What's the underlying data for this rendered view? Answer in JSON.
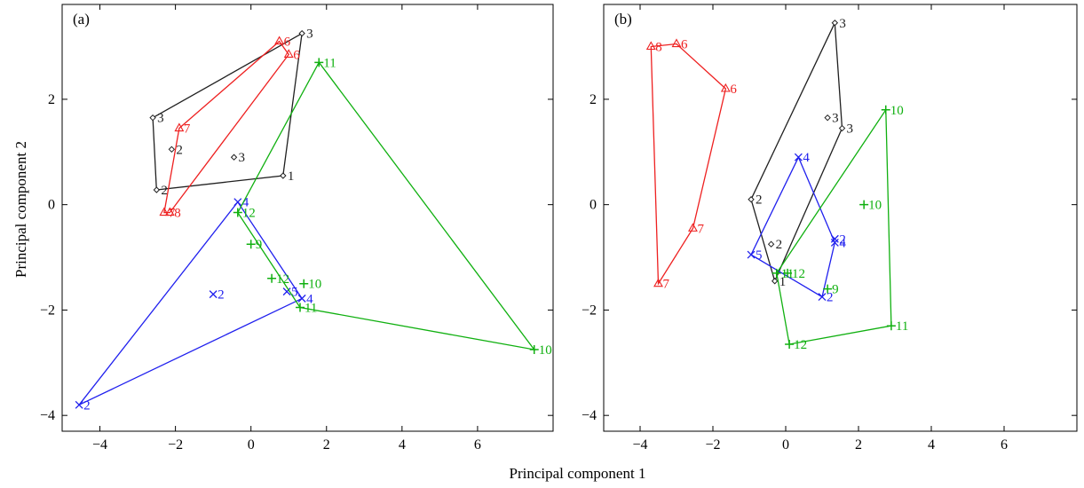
{
  "figure": {
    "xlabel": "Principal component 1",
    "ylabel": "Principal component 2"
  },
  "colors": {
    "grp1": "#202020",
    "grp2": "#ee2020",
    "grp3": "#2020ee",
    "grp4": "#10b010"
  },
  "chart_data": [
    {
      "type": "scatter",
      "panel_label": "(a)",
      "xlim": [
        -5,
        8
      ],
      "ylim": [
        -4.3,
        3.8
      ],
      "xticks": [
        -4,
        -2,
        0,
        2,
        4,
        6
      ],
      "yticks": [
        -4,
        -2,
        0,
        2
      ],
      "xticklabels": [
        "−4",
        "−2",
        "0",
        "2",
        "4",
        "6"
      ],
      "yticklabels": [
        "−4",
        "−2",
        "0",
        "2"
      ],
      "grid": false,
      "series": [
        {
          "marker": "diamond",
          "color": "#202020",
          "points": [
            {
              "x": 1.35,
              "y": 3.25,
              "label": "3"
            },
            {
              "x": -2.6,
              "y": 1.65,
              "label": "3"
            },
            {
              "x": -2.1,
              "y": 1.05,
              "label": "2"
            },
            {
              "x": -0.45,
              "y": 0.9,
              "label": "3"
            },
            {
              "x": -2.5,
              "y": 0.28,
              "label": "2"
            },
            {
              "x": 0.85,
              "y": 0.55,
              "label": "1"
            }
          ],
          "hull": [
            [
              1.35,
              3.25
            ],
            [
              -2.6,
              1.65
            ],
            [
              -2.5,
              0.28
            ],
            [
              0.85,
              0.55
            ]
          ]
        },
        {
          "marker": "triangle",
          "color": "#ee2020",
          "points": [
            {
              "x": 0.75,
              "y": 3.1,
              "label": "6"
            },
            {
              "x": 1.0,
              "y": 2.85,
              "label": "6"
            },
            {
              "x": -1.9,
              "y": 1.45,
              "label": "7"
            },
            {
              "x": -2.3,
              "y": -0.15,
              "label": "7"
            },
            {
              "x": -2.15,
              "y": -0.15,
              "label": "8"
            }
          ],
          "hull": [
            [
              0.75,
              3.1
            ],
            [
              1.0,
              2.85
            ],
            [
              -2.15,
              -0.15
            ],
            [
              -2.3,
              -0.15
            ],
            [
              -1.9,
              1.45
            ]
          ]
        },
        {
          "marker": "cross",
          "color": "#2020ee",
          "points": [
            {
              "x": -0.35,
              "y": 0.05,
              "label": "4"
            },
            {
              "x": -1.0,
              "y": -1.7,
              "label": "2"
            },
            {
              "x": 0.95,
              "y": -1.65,
              "label": "5"
            },
            {
              "x": 1.35,
              "y": -1.78,
              "label": "4"
            },
            {
              "x": -4.55,
              "y": -3.8,
              "label": "2"
            }
          ],
          "hull": [
            [
              -0.35,
              0.05
            ],
            [
              1.35,
              -1.78
            ],
            [
              -4.55,
              -3.8
            ]
          ]
        },
        {
          "marker": "plus",
          "color": "#10b010",
          "points": [
            {
              "x": 1.8,
              "y": 2.7,
              "label": "11"
            },
            {
              "x": -0.35,
              "y": -0.15,
              "label": "12"
            },
            {
              "x": 0.0,
              "y": -0.75,
              "label": "9"
            },
            {
              "x": 0.55,
              "y": -1.4,
              "label": "12"
            },
            {
              "x": 1.4,
              "y": -1.5,
              "label": "10"
            },
            {
              "x": 1.3,
              "y": -1.95,
              "label": "11"
            },
            {
              "x": 7.5,
              "y": -2.75,
              "label": "10"
            }
          ],
          "hull": [
            [
              1.8,
              2.7
            ],
            [
              7.5,
              -2.75
            ],
            [
              1.3,
              -1.95
            ],
            [
              -0.35,
              -0.15
            ]
          ]
        }
      ]
    },
    {
      "type": "scatter",
      "panel_label": "(b)",
      "xlim": [
        -5,
        8
      ],
      "ylim": [
        -4.3,
        3.8
      ],
      "xticks": [
        -4,
        -2,
        0,
        2,
        4,
        6
      ],
      "yticks": [
        -4,
        -2,
        0,
        2
      ],
      "xticklabels": [
        "−4",
        "−2",
        "0",
        "2",
        "4",
        "6"
      ],
      "yticklabels": [
        "−4",
        "−2",
        "0",
        "2"
      ],
      "grid": false,
      "series": [
        {
          "marker": "diamond",
          "color": "#202020",
          "points": [
            {
              "x": 1.35,
              "y": 3.45,
              "label": "3"
            },
            {
              "x": 1.15,
              "y": 1.65,
              "label": "3"
            },
            {
              "x": 1.55,
              "y": 1.45,
              "label": "3"
            },
            {
              "x": -0.95,
              "y": 0.1,
              "label": "2"
            },
            {
              "x": -0.4,
              "y": -0.75,
              "label": "2"
            },
            {
              "x": -0.3,
              "y": -1.45,
              "label": "1"
            }
          ],
          "hull": [
            [
              1.35,
              3.45
            ],
            [
              1.55,
              1.45
            ],
            [
              -0.3,
              -1.45
            ],
            [
              -0.95,
              0.1
            ]
          ]
        },
        {
          "marker": "triangle",
          "color": "#ee2020",
          "points": [
            {
              "x": -3.7,
              "y": 3.0,
              "label": "8"
            },
            {
              "x": -3.0,
              "y": 3.05,
              "label": "6"
            },
            {
              "x": -1.65,
              "y": 2.2,
              "label": "6"
            },
            {
              "x": -2.55,
              "y": -0.45,
              "label": "7"
            },
            {
              "x": -3.5,
              "y": -1.5,
              "label": "7"
            }
          ],
          "hull": [
            [
              -3.7,
              3.0
            ],
            [
              -3.0,
              3.05
            ],
            [
              -1.65,
              2.2
            ],
            [
              -2.55,
              -0.45
            ],
            [
              -3.5,
              -1.5
            ]
          ]
        },
        {
          "marker": "cross",
          "color": "#2020ee",
          "points": [
            {
              "x": 0.35,
              "y": 0.9,
              "label": "4"
            },
            {
              "x": 1.35,
              "y": -0.65,
              "label": "2"
            },
            {
              "x": 1.35,
              "y": -0.72,
              "label": "4"
            },
            {
              "x": -0.95,
              "y": -0.95,
              "label": "5"
            },
            {
              "x": 1.0,
              "y": -1.75,
              "label": "2"
            }
          ],
          "hull": [
            [
              0.35,
              0.9
            ],
            [
              1.35,
              -0.72
            ],
            [
              1.0,
              -1.75
            ],
            [
              -0.95,
              -0.95
            ]
          ]
        },
        {
          "marker": "plus",
          "color": "#10b010",
          "points": [
            {
              "x": 2.75,
              "y": 1.8,
              "label": "10"
            },
            {
              "x": 2.15,
              "y": 0.0,
              "label": "10"
            },
            {
              "x": -0.25,
              "y": -1.3,
              "label": "11"
            },
            {
              "x": 0.05,
              "y": -1.3,
              "label": "12"
            },
            {
              "x": 1.15,
              "y": -1.6,
              "label": "9"
            },
            {
              "x": 2.9,
              "y": -2.3,
              "label": "11"
            },
            {
              "x": 0.1,
              "y": -2.65,
              "label": "12"
            }
          ],
          "hull": [
            [
              2.75,
              1.8
            ],
            [
              2.9,
              -2.3
            ],
            [
              0.1,
              -2.65
            ],
            [
              -0.25,
              -1.3
            ]
          ]
        }
      ]
    }
  ]
}
